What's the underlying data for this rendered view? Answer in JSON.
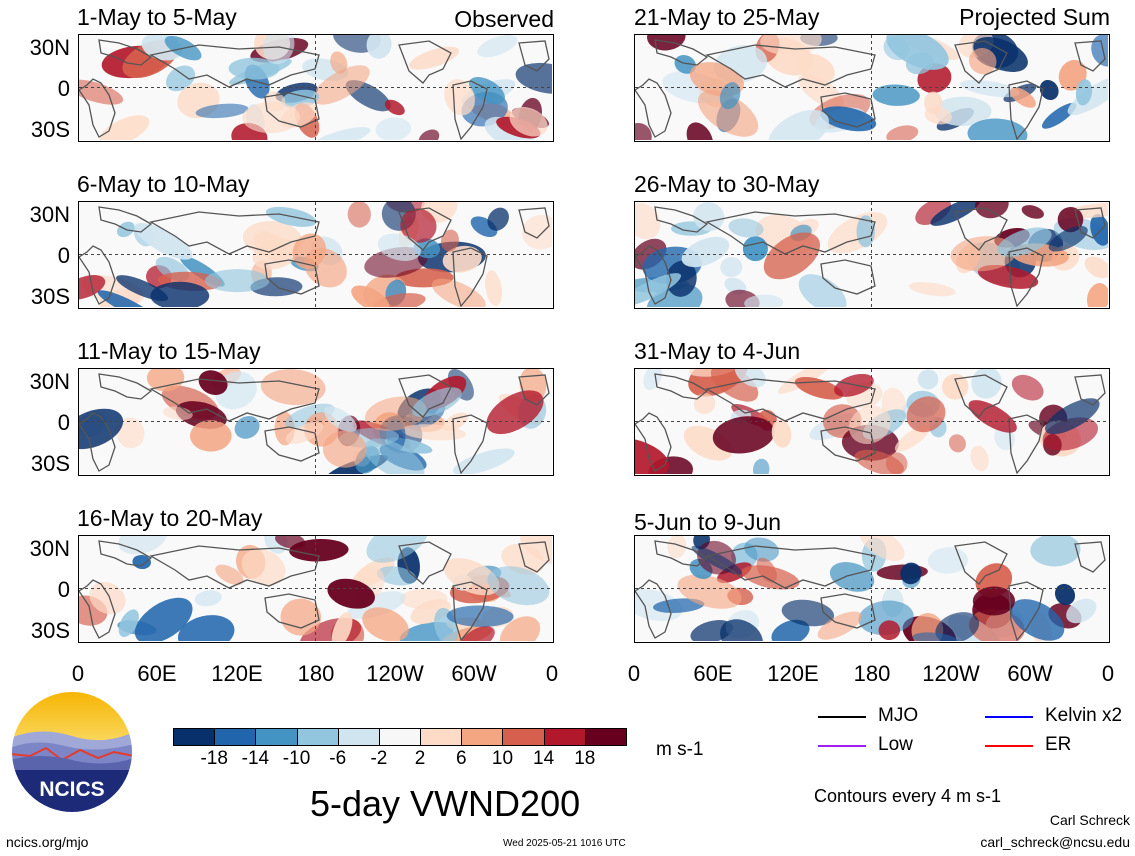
{
  "left_header_right": "Observed",
  "right_header_right": "Projected Sum",
  "left_panels": [
    {
      "title": "1-May to 5-May"
    },
    {
      "title": "6-May to 10-May"
    },
    {
      "title": "11-May to 15-May"
    },
    {
      "title": "16-May to 20-May"
    }
  ],
  "right_panels": [
    {
      "title": "21-May to 25-May"
    },
    {
      "title": "26-May to 30-May"
    },
    {
      "title": "31-May to 4-Jun"
    },
    {
      "title": "5-Jun to 9-Jun"
    }
  ],
  "y_labels": [
    "30N",
    "0",
    "30S"
  ],
  "x_labels": [
    "0",
    "60E",
    "120E",
    "180",
    "120W",
    "60W",
    "0"
  ],
  "colorbar": {
    "ticks": [
      "-18",
      "-14",
      "-10",
      "-6",
      "-2",
      "2",
      "6",
      "10",
      "14",
      "18"
    ],
    "colors": [
      "#08306b",
      "#2166ac",
      "#4393c3",
      "#92c5de",
      "#d1e5f0",
      "#f7f7f7",
      "#fddbc7",
      "#f4a582",
      "#d6604d",
      "#b2182b",
      "#67001f"
    ],
    "units": "m s-1"
  },
  "main_title": "5-day VWND200",
  "legend": {
    "items": [
      {
        "label": "MJO",
        "color": "#000000"
      },
      {
        "label": "Kelvin x2",
        "color": "#0000ff"
      },
      {
        "label": "Low",
        "color": "#a020f0"
      },
      {
        "label": "ER",
        "color": "#ff0000"
      }
    ],
    "contours_note": "Contours every 4 m s-1"
  },
  "logo": {
    "text": "NCICS"
  },
  "footer": {
    "url": "ncics.org/mjo",
    "timestamp": "Wed 2025-05-21 1016 UTC",
    "author": "Carl Schreck",
    "email": "carl_schreck@ncsu.edu"
  }
}
